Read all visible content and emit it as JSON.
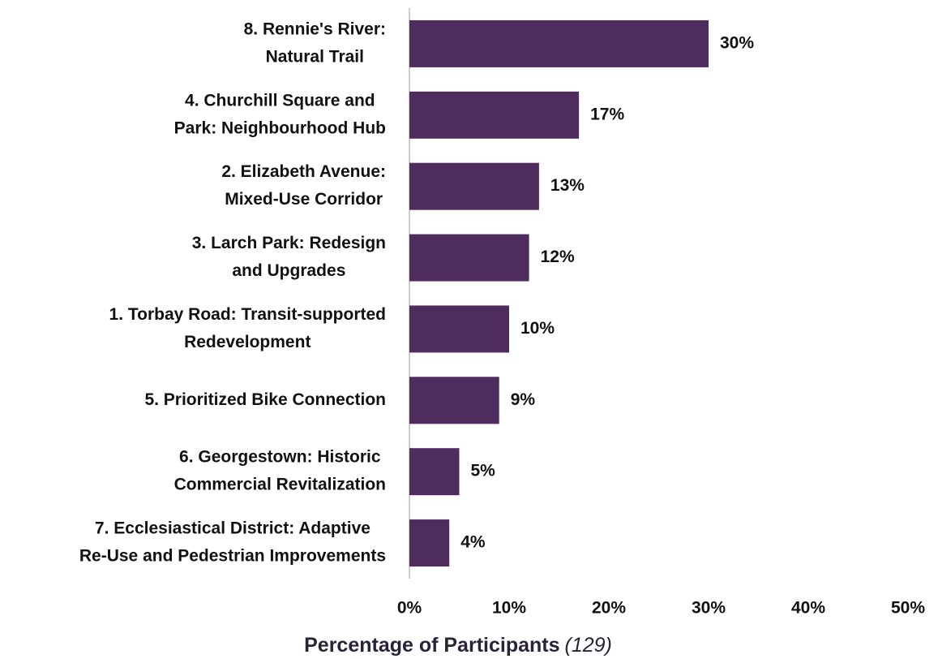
{
  "chart_data": {
    "type": "bar",
    "orientation": "horizontal",
    "categories": [
      [
        "8. Rennie's River:",
        "Natural Trail"
      ],
      [
        "4. Churchill Square and",
        "Park: Neighbourhood Hub"
      ],
      [
        "2. Elizabeth Avenue:",
        "Mixed-Use Corridor"
      ],
      [
        "3. Larch Park: Redesign",
        "and Upgrades"
      ],
      [
        "1. Torbay Road: Transit-supported",
        "Redevelopment"
      ],
      [
        "5. Prioritized Bike Connection"
      ],
      [
        "6. Georgestown: Historic",
        "Commercial Revitalization"
      ],
      [
        "7. Ecclesiastical District: Adaptive",
        "Re-Use and Pedestrian Improvements"
      ]
    ],
    "values": [
      30,
      17,
      13,
      12,
      10,
      9,
      5,
      4
    ],
    "value_labels": [
      "30%",
      "17%",
      "13%",
      "12%",
      "10%",
      "9%",
      "5%",
      "4%"
    ],
    "color": "#4e2c5e",
    "xlim": [
      0,
      50
    ],
    "xticks": [
      {
        "value": 0,
        "label": "0%"
      },
      {
        "value": 10,
        "label": "10%"
      },
      {
        "value": 20,
        "label": "20%"
      },
      {
        "value": 30,
        "label": "30%"
      },
      {
        "value": 40,
        "label": "40%"
      },
      {
        "value": 50,
        "label": "50%"
      }
    ],
    "x_label": "Percentage of Participants",
    "x_label_note": "(129)",
    "grid": false
  }
}
